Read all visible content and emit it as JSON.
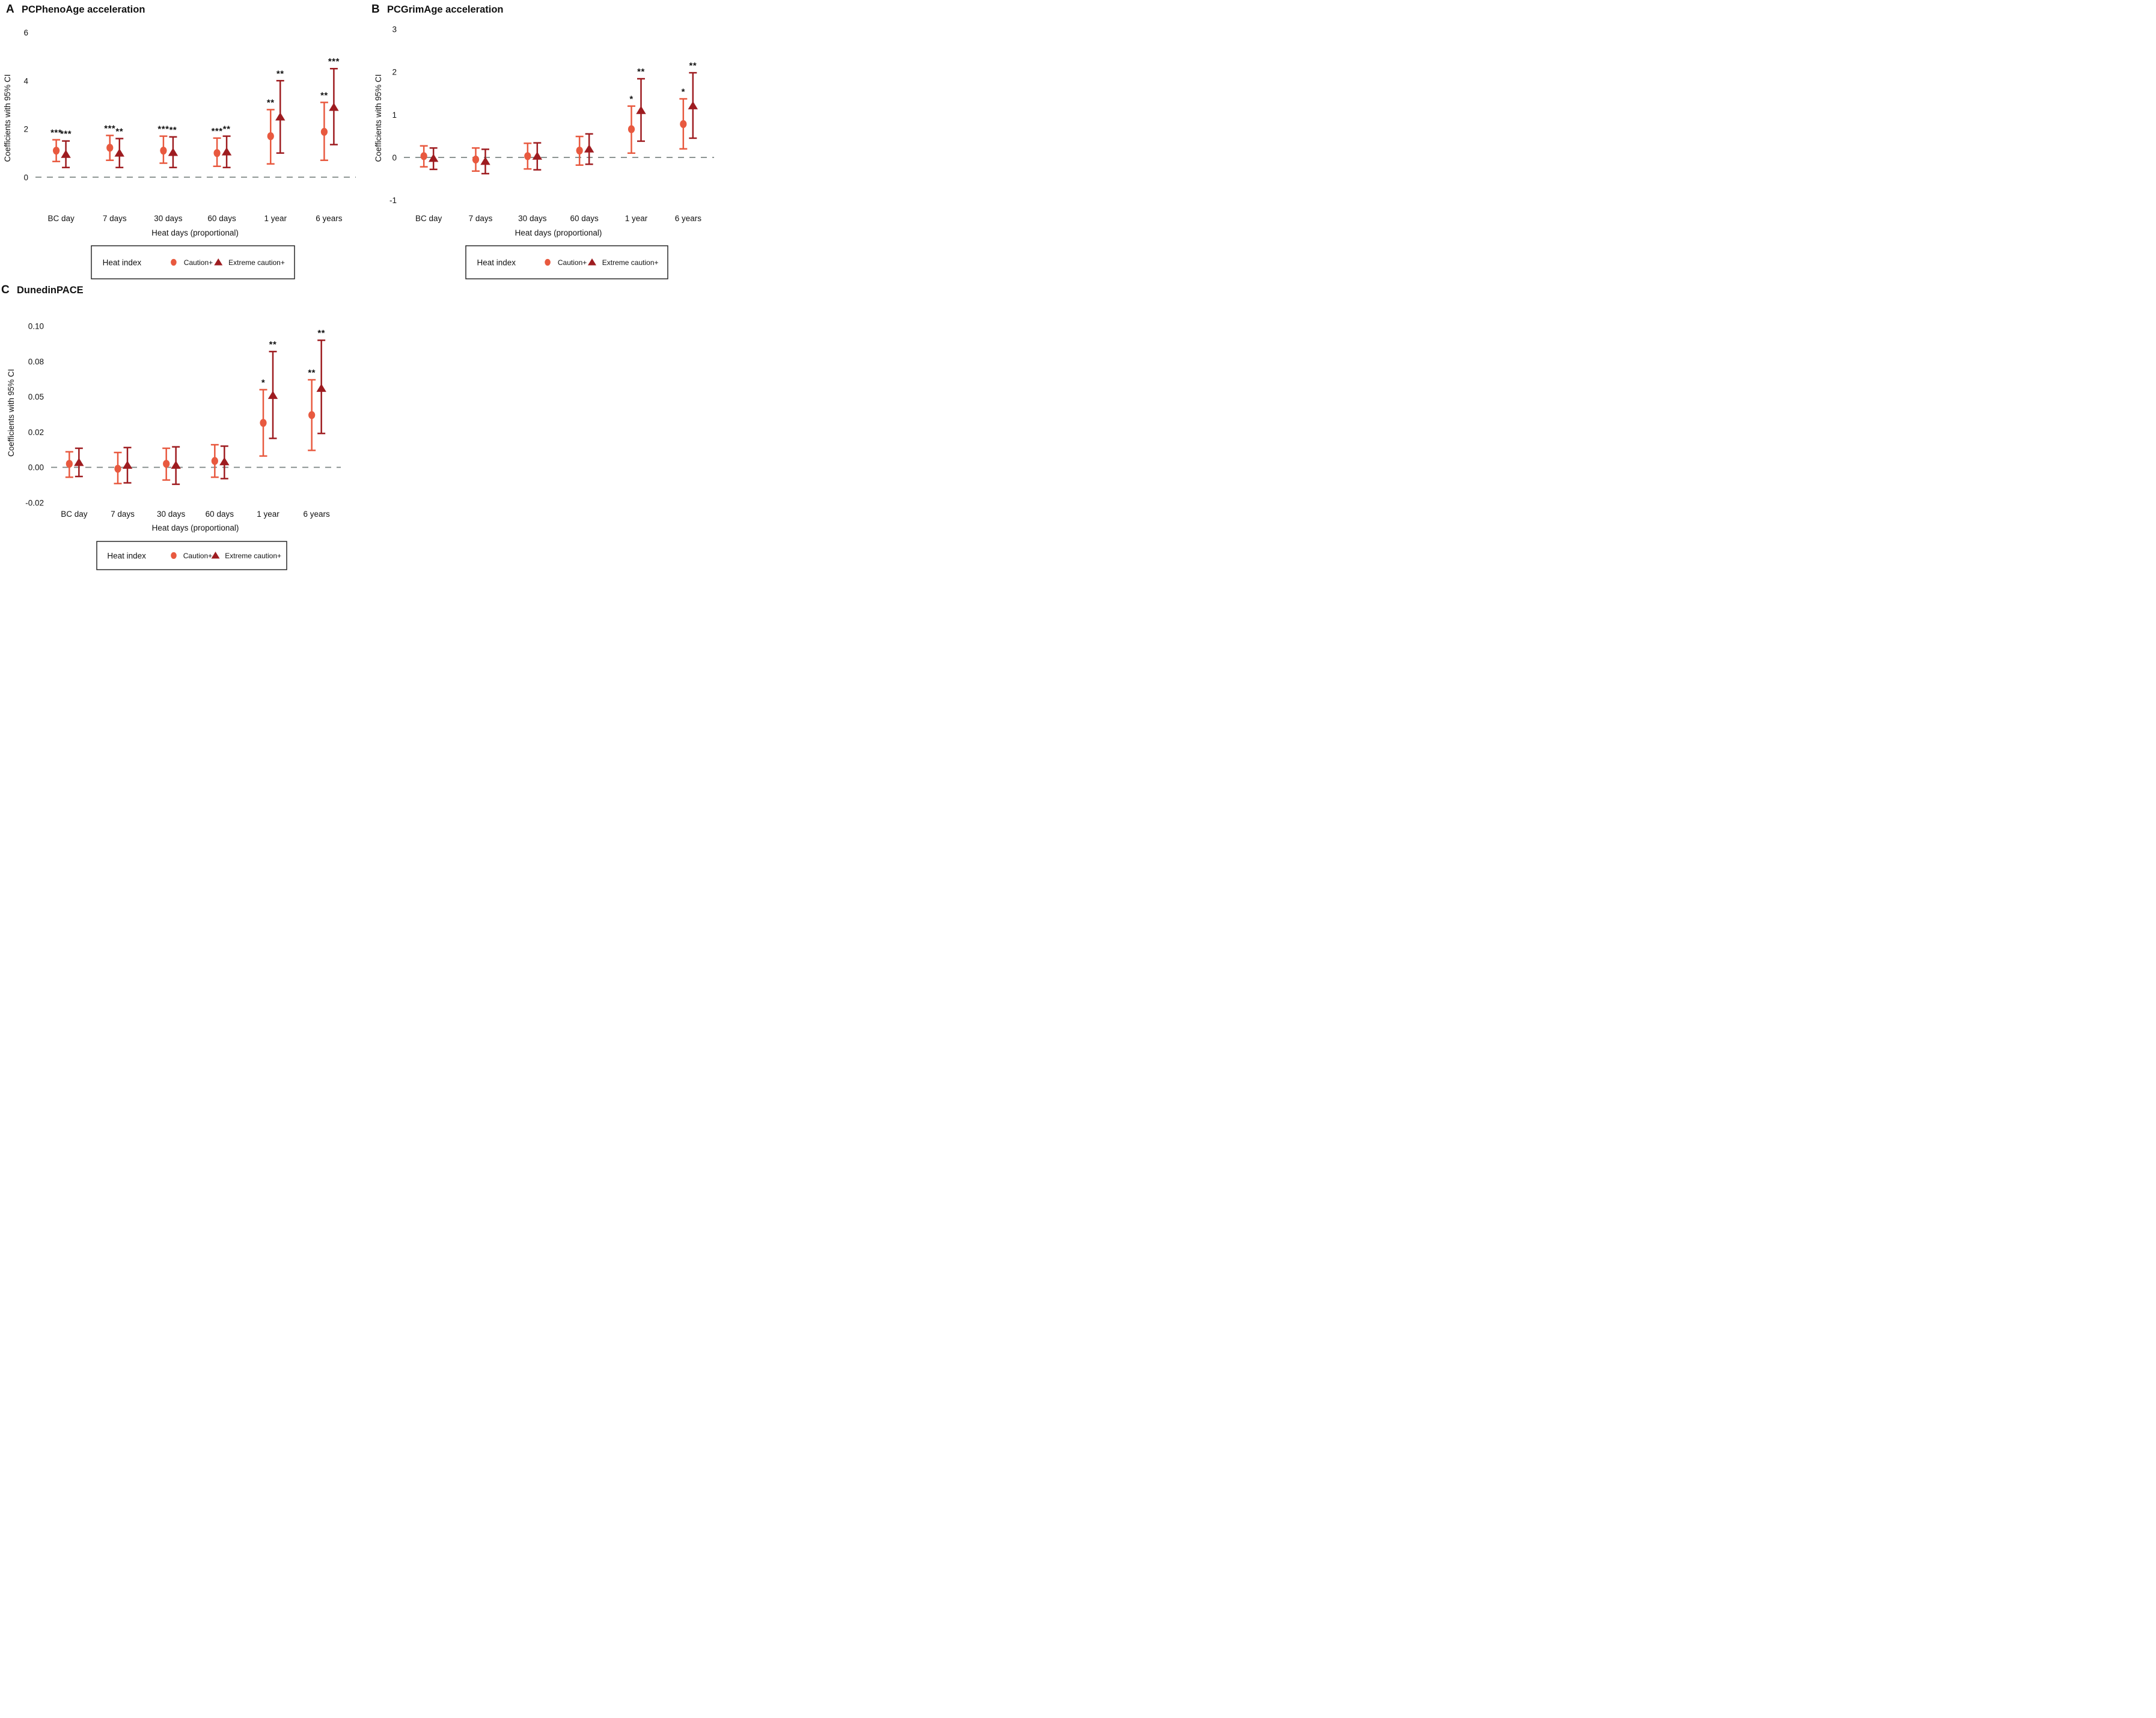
{
  "figure": {
    "background": "#ffffff",
    "series_colors": {
      "caution": "#E8593F",
      "extreme": "#9E1C20"
    },
    "zero_line_color": "#858E8C",
    "legend": {
      "title": "Heat index",
      "items": [
        {
          "label": "Caution+",
          "marker": "circle-icon",
          "color": "#E8593F"
        },
        {
          "label": "Extreme caution+",
          "marker": "triangle-icon",
          "color": "#9E1C20"
        }
      ]
    }
  },
  "chart_data": [
    {
      "id": "A",
      "panel_label": "A",
      "title": "PCPhenoAge acceleration",
      "type": "scatter",
      "ylabel": "Coefficients with 95% CI",
      "xlabel": "Heat days (proportional)",
      "categories": [
        "BC day",
        "7 days",
        "30 days",
        "60 days",
        "1 year",
        "6 years"
      ],
      "yticks": [
        0,
        2,
        4,
        6
      ],
      "ytick_labels": [
        "0",
        "2",
        "4",
        "6"
      ],
      "ylim": [
        -1.45,
        6.35
      ],
      "zero_line": 0,
      "grid": false,
      "legend_position": "bottom",
      "series": [
        {
          "name": "Caution+",
          "marker": "circle",
          "color_key": "caution",
          "points": [
            {
              "y": 1.1,
              "lo": 0.65,
              "hi": 1.55,
              "stars": "***"
            },
            {
              "y": 1.22,
              "lo": 0.7,
              "hi": 1.73,
              "stars": "***"
            },
            {
              "y": 1.1,
              "lo": 0.58,
              "hi": 1.7,
              "stars": "***"
            },
            {
              "y": 1.0,
              "lo": 0.45,
              "hi": 1.62,
              "stars": "***"
            },
            {
              "y": 1.7,
              "lo": 0.55,
              "hi": 2.8,
              "stars": "**"
            },
            {
              "y": 1.88,
              "lo": 0.7,
              "hi": 3.1,
              "stars": "**"
            }
          ]
        },
        {
          "name": "Extreme caution+",
          "marker": "triangle",
          "color_key": "extreme",
          "points": [
            {
              "y": 0.95,
              "lo": 0.4,
              "hi": 1.5,
              "stars": "***"
            },
            {
              "y": 1.0,
              "lo": 0.4,
              "hi": 1.6,
              "stars": "**"
            },
            {
              "y": 1.03,
              "lo": 0.4,
              "hi": 1.67,
              "stars": "**"
            },
            {
              "y": 1.05,
              "lo": 0.4,
              "hi": 1.7,
              "stars": "**"
            },
            {
              "y": 2.5,
              "lo": 1.0,
              "hi": 4.0,
              "stars": "**"
            },
            {
              "y": 2.9,
              "lo": 1.35,
              "hi": 4.5,
              "stars": "***"
            }
          ]
        }
      ]
    },
    {
      "id": "B",
      "panel_label": "B",
      "title": "PCGrimAge acceleration",
      "type": "scatter",
      "ylabel": "Coefficients with 95% CI",
      "xlabel": "Heat days (proportional)",
      "categories": [
        "BC day",
        "7 days",
        "30 days",
        "60 days",
        "1 year",
        "6 years"
      ],
      "yticks": [
        -1,
        0,
        1,
        2,
        3
      ],
      "ytick_labels": [
        "-1",
        "0",
        "1",
        "2",
        "3"
      ],
      "ylim": [
        -1.28,
        3.12
      ],
      "zero_line": 0,
      "grid": false,
      "legend_position": "bottom",
      "series": [
        {
          "name": "Caution+",
          "marker": "circle",
          "color_key": "caution",
          "points": [
            {
              "y": 0.03,
              "lo": -0.22,
              "hi": 0.27,
              "stars": ""
            },
            {
              "y": -0.05,
              "lo": -0.32,
              "hi": 0.22,
              "stars": ""
            },
            {
              "y": 0.03,
              "lo": -0.27,
              "hi": 0.33,
              "stars": ""
            },
            {
              "y": 0.16,
              "lo": -0.18,
              "hi": 0.49,
              "stars": ""
            },
            {
              "y": 0.66,
              "lo": 0.1,
              "hi": 1.2,
              "stars": "*"
            },
            {
              "y": 0.78,
              "lo": 0.2,
              "hi": 1.37,
              "stars": "*"
            }
          ]
        },
        {
          "name": "Extreme caution+",
          "marker": "triangle",
          "color_key": "extreme",
          "points": [
            {
              "y": -0.02,
              "lo": -0.28,
              "hi": 0.22,
              "stars": ""
            },
            {
              "y": -0.09,
              "lo": -0.38,
              "hi": 0.19,
              "stars": ""
            },
            {
              "y": 0.03,
              "lo": -0.29,
              "hi": 0.34,
              "stars": ""
            },
            {
              "y": 0.2,
              "lo": -0.16,
              "hi": 0.55,
              "stars": ""
            },
            {
              "y": 1.1,
              "lo": 0.38,
              "hi": 1.84,
              "stars": "**"
            },
            {
              "y": 1.21,
              "lo": 0.45,
              "hi": 1.98,
              "stars": "**"
            }
          ]
        }
      ]
    },
    {
      "id": "C",
      "panel_label": "C",
      "title": "DunedinPACE",
      "type": "scatter",
      "ylabel": "Coefficients with 95% CI",
      "xlabel": "Heat days (proportional)",
      "categories": [
        "BC day",
        "7 days",
        "30 days",
        "60 days",
        "1 year",
        "6 years"
      ],
      "yticks": [
        -0.025,
        0,
        0.025,
        0.05,
        0.075,
        0.1
      ],
      "ytick_labels": [
        "-0.02",
        "0.00",
        "0.02",
        "0.05",
        "0.08",
        "0.10"
      ],
      "ylim": [
        -0.0295,
        0.1067
      ],
      "zero_line": 0,
      "grid": false,
      "legend_position": "bottom",
      "series": [
        {
          "name": "Caution+",
          "marker": "circle",
          "color_key": "caution",
          "points": [
            {
              "y": 0.0025,
              "lo": -0.007,
              "hi": 0.011,
              "stars": ""
            },
            {
              "y": -0.001,
              "lo": -0.0115,
              "hi": 0.0105,
              "stars": ""
            },
            {
              "y": 0.0025,
              "lo": -0.009,
              "hi": 0.0135,
              "stars": ""
            },
            {
              "y": 0.0045,
              "lo": -0.007,
              "hi": 0.016,
              "stars": ""
            },
            {
              "y": 0.0315,
              "lo": 0.008,
              "hi": 0.055,
              "stars": "*"
            },
            {
              "y": 0.037,
              "lo": 0.012,
              "hi": 0.062,
              "stars": "**"
            }
          ]
        },
        {
          "name": "Extreme caution+",
          "marker": "triangle",
          "color_key": "extreme",
          "points": [
            {
              "y": 0.0035,
              "lo": -0.0065,
              "hi": 0.0135,
              "stars": ""
            },
            {
              "y": 0.0015,
              "lo": -0.011,
              "hi": 0.014,
              "stars": ""
            },
            {
              "y": 0.0015,
              "lo": -0.012,
              "hi": 0.0145,
              "stars": ""
            },
            {
              "y": 0.004,
              "lo": -0.008,
              "hi": 0.015,
              "stars": ""
            },
            {
              "y": 0.051,
              "lo": 0.0205,
              "hi": 0.082,
              "stars": "**"
            },
            {
              "y": 0.056,
              "lo": 0.024,
              "hi": 0.09,
              "stars": "**"
            }
          ]
        }
      ]
    }
  ]
}
